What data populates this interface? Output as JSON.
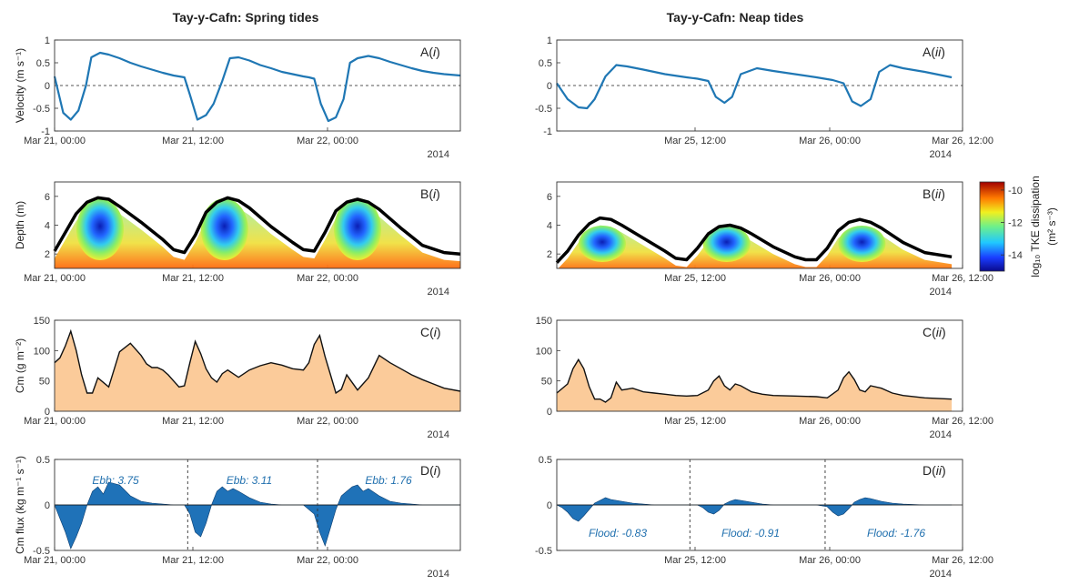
{
  "figure": {
    "titles": [
      "Tay-y-Cafn: Spring tides",
      "Tay-y-Cafn: Neap tides"
    ],
    "colorbar": {
      "label": "log₁₀ TKE dissipation",
      "units": "(m² s⁻³)",
      "ticks": [
        "-10",
        "-12",
        "-14"
      ],
      "range": [
        -15,
        -9.5
      ]
    },
    "colors": {
      "series": "#1f77b4",
      "sediment_fill": "#fbcb9a",
      "flux_fill": "#1f72b8",
      "depth_line": "#000000"
    }
  },
  "chart_data": [
    {
      "id": "A-i",
      "type": "line",
      "panel_label": "A(i)",
      "ylabel": "Velocity (m s⁻¹)",
      "ylim": [
        -1,
        1
      ],
      "yticks": [
        "1",
        "0.5",
        "0",
        "-0.5",
        "-1"
      ],
      "xticks": [
        "Mar 21, 00:00",
        "Mar 21, 12:00",
        "Mar 22, 00:00"
      ],
      "year": "2014",
      "series": [
        {
          "x": [
            0,
            0.8,
            1.5,
            2.2,
            2.9,
            3.4,
            4.2,
            5,
            6,
            7,
            8,
            9,
            10,
            11,
            11.5,
            12,
            12.5,
            13.2,
            14,
            14.7,
            15.5,
            16.2,
            17,
            18,
            19,
            20,
            21,
            22,
            23,
            23.5,
            24,
            24.6,
            25.3,
            26,
            26.7,
            27.3,
            28,
            29,
            30,
            31,
            32,
            33,
            34,
            35,
            36,
            37.5
          ],
          "y": [
            0.2,
            -0.6,
            -0.75,
            -0.55,
            0,
            0.62,
            0.72,
            0.68,
            0.6,
            0.5,
            0.42,
            0.35,
            0.28,
            0.22,
            0.2,
            0.18,
            -0.2,
            -0.75,
            -0.65,
            -0.4,
            0.1,
            0.6,
            0.62,
            0.55,
            0.45,
            0.38,
            0.3,
            0.25,
            0.2,
            0.18,
            0.15,
            -0.4,
            -0.78,
            -0.7,
            -0.3,
            0.5,
            0.6,
            0.65,
            0.6,
            0.52,
            0.45,
            0.38,
            0.32,
            0.28,
            0.25,
            0.22
          ]
        }
      ]
    },
    {
      "id": "A-ii",
      "type": "line",
      "panel_label": "A(ii)",
      "ylabel": "",
      "ylim": [
        -1,
        1
      ],
      "yticks": [
        "1",
        "0.5",
        "0",
        "-0.5",
        "-1"
      ],
      "xticks": [
        "Mar 25, 12:00",
        "Mar 26, 00:00",
        "Mar 26, 12:00"
      ],
      "year": "2014",
      "series": [
        {
          "x": [
            0,
            1,
            2,
            2.8,
            3.5,
            4.5,
            5.5,
            6.5,
            8,
            10,
            12,
            13,
            14,
            14.7,
            15.5,
            16.2,
            17,
            18.5,
            20,
            22,
            24,
            25.5,
            26.5,
            27.3,
            28.1,
            29,
            29.8,
            30.8,
            32,
            34,
            36.5
          ],
          "y": [
            0.05,
            -0.3,
            -0.48,
            -0.5,
            -0.3,
            0.2,
            0.45,
            0.42,
            0.35,
            0.25,
            0.18,
            0.15,
            0.1,
            -0.25,
            -0.38,
            -0.25,
            0.25,
            0.38,
            0.32,
            0.25,
            0.18,
            0.12,
            0.05,
            -0.35,
            -0.45,
            -0.3,
            0.3,
            0.45,
            0.38,
            0.3,
            0.18
          ]
        }
      ]
    },
    {
      "id": "B-i",
      "type": "heatmap",
      "panel_label": "B(i)",
      "ylabel": "Depth (m)",
      "ylim": [
        1,
        7
      ],
      "yticks": [
        "6",
        "4",
        "2"
      ],
      "xticks": [
        "Mar 21, 00:00",
        "Mar 21, 12:00",
        "Mar 22, 00:00"
      ],
      "year": "2014",
      "series": [
        {
          "name": "depth",
          "x": [
            0,
            1,
            2,
            3,
            4,
            5,
            6,
            8,
            10,
            11,
            12,
            13,
            14,
            15,
            16,
            17,
            18,
            20,
            22,
            23,
            24,
            25,
            26,
            27,
            28,
            29,
            30,
            32,
            34,
            36,
            37.5
          ],
          "y": [
            2.2,
            3.5,
            4.8,
            5.6,
            5.9,
            5.8,
            5.3,
            4.2,
            3.0,
            2.3,
            2.1,
            3.3,
            4.9,
            5.6,
            5.9,
            5.7,
            5.2,
            3.9,
            2.8,
            2.3,
            2.2,
            3.5,
            5.0,
            5.6,
            5.8,
            5.6,
            5.1,
            3.8,
            2.6,
            2.1,
            2.0
          ]
        }
      ]
    },
    {
      "id": "B-ii",
      "type": "heatmap",
      "panel_label": "B(ii)",
      "ylabel": "",
      "ylim": [
        1,
        7
      ],
      "yticks": [
        "6",
        "4",
        "2"
      ],
      "xticks": [
        "Mar 25, 12:00",
        "Mar 26, 00:00",
        "Mar 26, 12:00"
      ],
      "year": "2014",
      "series": [
        {
          "name": "depth",
          "x": [
            0,
            1,
            2,
            3,
            4,
            5,
            6,
            8,
            10,
            11,
            12,
            13,
            14,
            15,
            16,
            17,
            18,
            20,
            22,
            23,
            24,
            25,
            26,
            27,
            28,
            29,
            30,
            32,
            34,
            36.5
          ],
          "y": [
            1.4,
            2.2,
            3.3,
            4.1,
            4.5,
            4.4,
            4.0,
            3.1,
            2.2,
            1.7,
            1.6,
            2.4,
            3.4,
            3.9,
            4.0,
            3.8,
            3.4,
            2.5,
            1.8,
            1.6,
            1.6,
            2.4,
            3.6,
            4.2,
            4.4,
            4.2,
            3.8,
            2.8,
            2.1,
            1.8
          ]
        }
      ]
    },
    {
      "id": "C-i",
      "type": "area",
      "panel_label": "C(i)",
      "ylabel": "Cm (g m⁻²)",
      "ylim": [
        0,
        150
      ],
      "yticks": [
        "150",
        "100",
        "50",
        "0"
      ],
      "xticks": [
        "Mar 21, 00:00",
        "Mar 21, 12:00",
        "Mar 22, 00:00"
      ],
      "year": "2014",
      "series": [
        {
          "x": [
            0,
            0.5,
            1,
            1.5,
            2,
            2.5,
            3,
            3.5,
            4,
            5,
            6,
            7,
            8,
            8.5,
            9,
            9.5,
            10,
            10.5,
            11,
            11.5,
            12,
            12.5,
            13,
            13.5,
            14,
            14.5,
            15,
            15.5,
            16,
            16.5,
            17,
            18,
            19,
            20,
            21,
            22,
            23,
            23.5,
            24,
            24.5,
            25,
            25.5,
            26,
            26.5,
            27,
            28,
            29,
            30,
            31,
            32,
            33,
            34,
            35,
            36,
            37.5
          ],
          "y": [
            80,
            88,
            108,
            132,
            100,
            60,
            30,
            30,
            55,
            40,
            98,
            112,
            92,
            78,
            72,
            72,
            68,
            60,
            50,
            40,
            42,
            80,
            115,
            95,
            70,
            55,
            48,
            62,
            68,
            62,
            56,
            68,
            75,
            80,
            76,
            70,
            68,
            80,
            110,
            125,
            90,
            60,
            30,
            36,
            60,
            35,
            55,
            92,
            80,
            70,
            60,
            52,
            45,
            38,
            33
          ]
        }
      ]
    },
    {
      "id": "C-ii",
      "type": "area",
      "panel_label": "C(ii)",
      "ylabel": "",
      "ylim": [
        0,
        150
      ],
      "yticks": [
        "150",
        "100",
        "50",
        "0"
      ],
      "xticks": [
        "Mar 25, 12:00",
        "Mar 26, 00:00",
        "Mar 26, 12:00"
      ],
      "year": "2014",
      "series": [
        {
          "x": [
            0,
            1,
            1.5,
            2,
            2.5,
            3,
            3.5,
            4,
            4.5,
            5,
            5.5,
            6,
            7,
            8,
            9,
            10,
            11,
            12,
            13,
            14,
            14.5,
            15,
            15.5,
            16,
            16.5,
            17,
            18,
            19,
            20,
            22,
            24,
            25,
            26,
            26.5,
            27,
            27.5,
            28,
            28.5,
            29,
            30,
            31,
            32,
            34,
            36.5
          ],
          "y": [
            30,
            45,
            70,
            85,
            70,
            40,
            20,
            20,
            15,
            22,
            48,
            35,
            38,
            32,
            30,
            28,
            26,
            25,
            26,
            35,
            50,
            58,
            42,
            35,
            45,
            42,
            32,
            28,
            26,
            25,
            24,
            22,
            35,
            55,
            65,
            52,
            35,
            32,
            42,
            38,
            30,
            26,
            22,
            20
          ]
        }
      ]
    },
    {
      "id": "D-i",
      "type": "area",
      "panel_label": "D(i)",
      "ylabel": "Cm flux (kg m⁻¹ s⁻¹)",
      "ylim": [
        -0.5,
        0.5
      ],
      "yticks": [
        "0.5",
        "0",
        "-0.5"
      ],
      "xticks": [
        "Mar 21, 00:00",
        "Mar 21, 12:00",
        "Mar 22, 00:00"
      ],
      "year": "2014",
      "annotations": [
        "Ebb: 3.75",
        "Ebb: 3.11",
        "Ebb: 1.76"
      ],
      "dividers": [
        12.3,
        24.3
      ],
      "series": [
        {
          "x": [
            0,
            0.5,
            1,
            1.5,
            2,
            2.5,
            3,
            3.5,
            4,
            4.5,
            5,
            6,
            7,
            8,
            9,
            10,
            11,
            12,
            12.5,
            13,
            13.5,
            14,
            14.5,
            15,
            15.5,
            16,
            16.5,
            17,
            18,
            19,
            20,
            21,
            22,
            23,
            24,
            24.5,
            25,
            25.5,
            26,
            26.5,
            27,
            27.5,
            28,
            28.5,
            29,
            30,
            31,
            32,
            33,
            34,
            35,
            36,
            37.5
          ],
          "y": [
            0,
            -0.15,
            -0.3,
            -0.48,
            -0.35,
            -0.2,
            0,
            0.15,
            0.2,
            0.12,
            0.25,
            0.22,
            0.1,
            0.04,
            0.02,
            0.01,
            0,
            0,
            -0.1,
            -0.3,
            -0.35,
            -0.2,
            0,
            0.15,
            0.2,
            0.15,
            0.18,
            0.15,
            0.08,
            0.03,
            0.01,
            0,
            0,
            0,
            -0.1,
            -0.3,
            -0.45,
            -0.25,
            -0.05,
            0.1,
            0.15,
            0.2,
            0.22,
            0.15,
            0.18,
            0.1,
            0.04,
            0.02,
            0.01,
            0,
            0,
            0,
            0
          ]
        }
      ]
    },
    {
      "id": "D-ii",
      "type": "area",
      "panel_label": "D(ii)",
      "ylabel": "",
      "ylim": [
        -0.5,
        0.5
      ],
      "yticks": [
        "0.5",
        "0",
        "-0.5"
      ],
      "xticks": [
        "Mar 25, 12:00",
        "Mar 26, 00:00",
        "Mar 26, 12:00"
      ],
      "year": "2014",
      "annotations": [
        "Flood: -0.83",
        "Flood: -0.91",
        "Flood: -1.76"
      ],
      "dividers": [
        12.3,
        24.8
      ],
      "series": [
        {
          "x": [
            0,
            0.5,
            1,
            1.5,
            2,
            2.5,
            3,
            3.5,
            4,
            4.5,
            5,
            6,
            7,
            8,
            9,
            10,
            11,
            12,
            13,
            13.5,
            14,
            14.5,
            15,
            15.5,
            16,
            16.5,
            17,
            18,
            19,
            20,
            22,
            24,
            25,
            25.5,
            26,
            26.5,
            27,
            27.5,
            28,
            28.5,
            29,
            30,
            31,
            32,
            34,
            36.5
          ],
          "y": [
            0,
            -0.03,
            -0.08,
            -0.15,
            -0.18,
            -0.12,
            -0.05,
            0.02,
            0.05,
            0.08,
            0.06,
            0.04,
            0.02,
            0.01,
            0,
            0,
            0,
            0,
            0,
            -0.03,
            -0.08,
            -0.1,
            -0.06,
            0.01,
            0.04,
            0.06,
            0.05,
            0.03,
            0.01,
            0,
            0,
            0,
            -0.02,
            -0.08,
            -0.12,
            -0.1,
            -0.04,
            0.03,
            0.06,
            0.08,
            0.07,
            0.04,
            0.02,
            0.01,
            0,
            0
          ]
        }
      ]
    }
  ]
}
